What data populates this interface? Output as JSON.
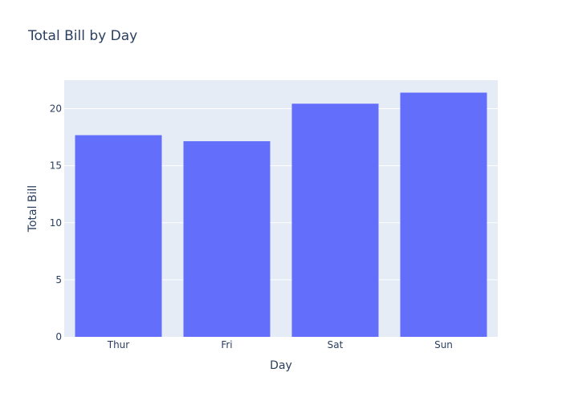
{
  "chart_data": {
    "type": "bar",
    "title": "Total Bill by Day",
    "xlabel": "Day",
    "ylabel": "Total Bill",
    "categories": [
      "Thur",
      "Fri",
      "Sat",
      "Sun"
    ],
    "values": [
      17.68,
      17.15,
      20.44,
      21.41
    ],
    "ylim": [
      0,
      22.5
    ],
    "yticks": [
      0,
      5,
      10,
      15,
      20
    ],
    "grid": true,
    "colors": {
      "bar": "#636efa",
      "plot_background": "#e5ecf6",
      "grid": "#ffffff",
      "text": "#2a3f5f"
    }
  }
}
